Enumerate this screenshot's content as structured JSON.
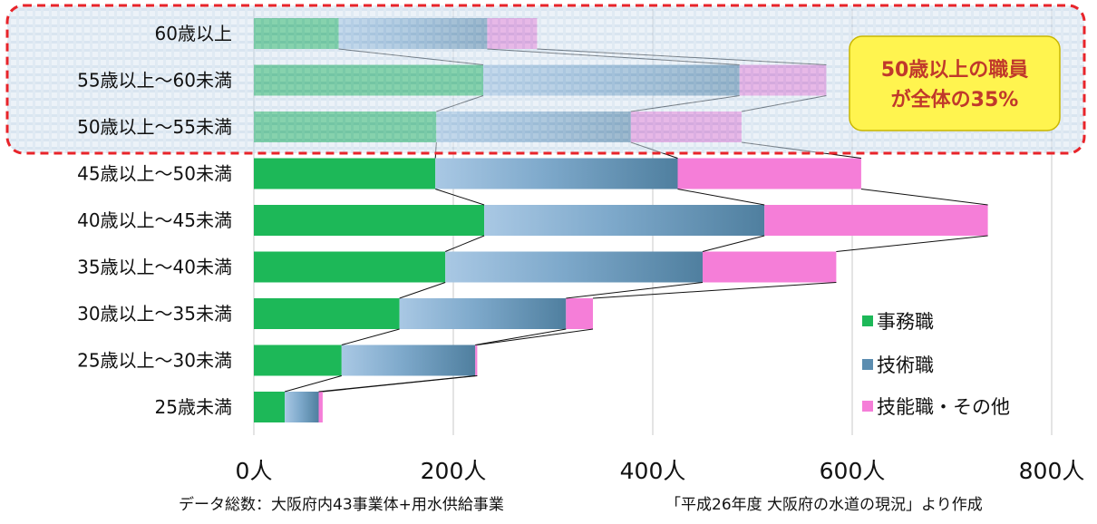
{
  "chart_data": {
    "type": "bar",
    "orientation": "horizontal",
    "stacked": true,
    "categories": [
      "60歳以上",
      "55歳以上～60未満",
      "50歳以上～55未満",
      "45歳以上～50未満",
      "40歳以上～45未満",
      "35歳以上～40未満",
      "30歳以上～35未満",
      "25歳以上～30未満",
      "25歳未満"
    ],
    "series": [
      {
        "name": "事務職",
        "values": [
          85,
          230,
          183,
          182,
          231,
          192,
          146,
          88,
          31
        ]
      },
      {
        "name": "技術職",
        "values": [
          149,
          257,
          195,
          243,
          281,
          258,
          167,
          134,
          34
        ]
      },
      {
        "name": "技能職・その他",
        "values": [
          50,
          87,
          111,
          184,
          224,
          134,
          27,
          2,
          4
        ]
      }
    ],
    "xticks": [
      "0人",
      "200人",
      "400人",
      "600人",
      "800人"
    ],
    "xlim": [
      0,
      800
    ],
    "grid": true,
    "series_lines": true,
    "legend_position": "right",
    "highlight_categories": [
      "60歳以上",
      "55歳以上～60未満",
      "50歳以上～55未満"
    ],
    "annotation": {
      "line1": "50歳以上の職員",
      "line2": "が全体の35%"
    },
    "footer_left": "データ総数：大阪府内43事業体+用水供給事業",
    "footer_right": "「平成26年度 大阪府の水道の現況」より作成",
    "colors": {
      "事務職": "#1db858",
      "技術職": "#5b8db0",
      "技能職・その他": "#f57ed8",
      "highlight_border": "#e8242a",
      "callout_fill": "#fff44f",
      "callout_text": "#c0392b"
    }
  }
}
